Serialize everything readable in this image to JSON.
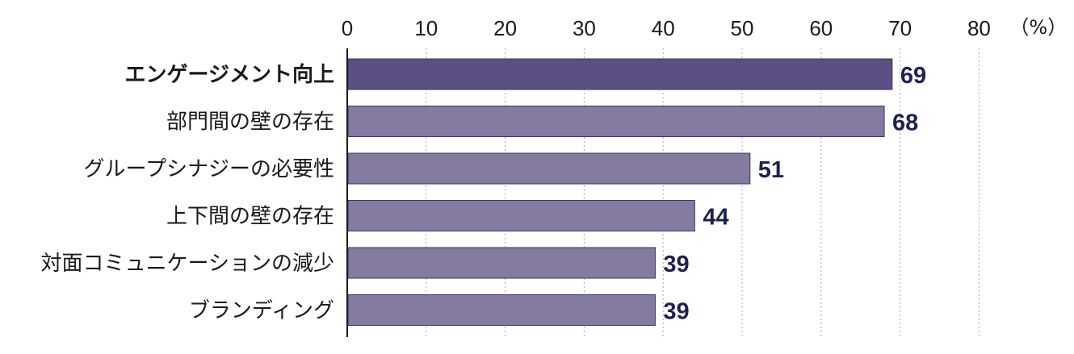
{
  "chart_data": {
    "type": "bar",
    "orientation": "horizontal",
    "categories": [
      "エンゲージメント向上",
      "部門間の壁の存在",
      "グループシナジーの必要性",
      "上下間の壁の存在",
      "対面コミュニケーションの減少",
      "ブランディング"
    ],
    "values": [
      69,
      68,
      51,
      44,
      39,
      39
    ],
    "highlight_index": 0,
    "xlim": [
      0,
      80
    ],
    "xticks": [
      0,
      10,
      20,
      30,
      40,
      50,
      60,
      70,
      80
    ],
    "unit": "（%）",
    "grid": true,
    "axis_position": "top",
    "colors": {
      "bar": "#857a9f",
      "bar_highlight": "#5c4f83",
      "highlight_label": "#9a8a12",
      "value_label": "#1d2150"
    }
  }
}
